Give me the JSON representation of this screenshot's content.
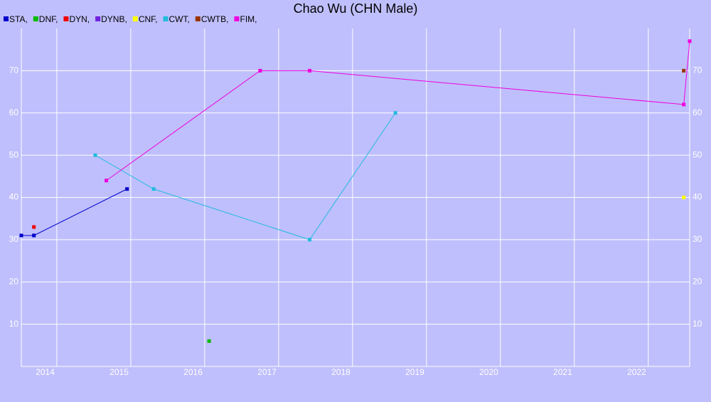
{
  "chart_data": {
    "type": "line",
    "title": "Chao Wu (CHN Male)",
    "xlim": [
      2013.52,
      2022.56
    ],
    "xticks": [
      2014,
      2015,
      2016,
      2017,
      2018,
      2019,
      2020,
      2021,
      2022
    ],
    "ylim": [
      0,
      80
    ],
    "yticks": [
      10,
      20,
      30,
      40,
      50,
      60,
      70
    ],
    "grid": true,
    "series": [
      {
        "name": "STA,",
        "color": "#0000cc",
        "x": [
          2013.52,
          2013.69,
          2014.95
        ],
        "values": [
          31,
          31,
          42
        ]
      },
      {
        "name": "DNF,",
        "color": "#00bb00",
        "x": [
          2016.06
        ],
        "values": [
          6
        ]
      },
      {
        "name": "DYN,",
        "color": "#ee0000",
        "x": [
          2013.69
        ],
        "values": [
          33
        ]
      },
      {
        "name": "DYNB,",
        "color": "#7020e0",
        "x": [],
        "values": []
      },
      {
        "name": "CNF,",
        "color": "#ffff00",
        "x": [
          2022.48
        ],
        "values": [
          40
        ]
      },
      {
        "name": "CWT,",
        "color": "#22bbdd",
        "x": [
          2014.52,
          2015.31,
          2017.42,
          2018.58
        ],
        "values": [
          50,
          42,
          30,
          60
        ]
      },
      {
        "name": "CWTB,",
        "color": "#993300",
        "x": [
          2022.48
        ],
        "values": [
          70
        ]
      },
      {
        "name": "FIM,",
        "color": "#ee00dd",
        "x": [
          2014.67,
          2016.75,
          2017.42,
          2022.48,
          2022.56
        ],
        "values": [
          44,
          70,
          70,
          62,
          77
        ]
      }
    ]
  }
}
